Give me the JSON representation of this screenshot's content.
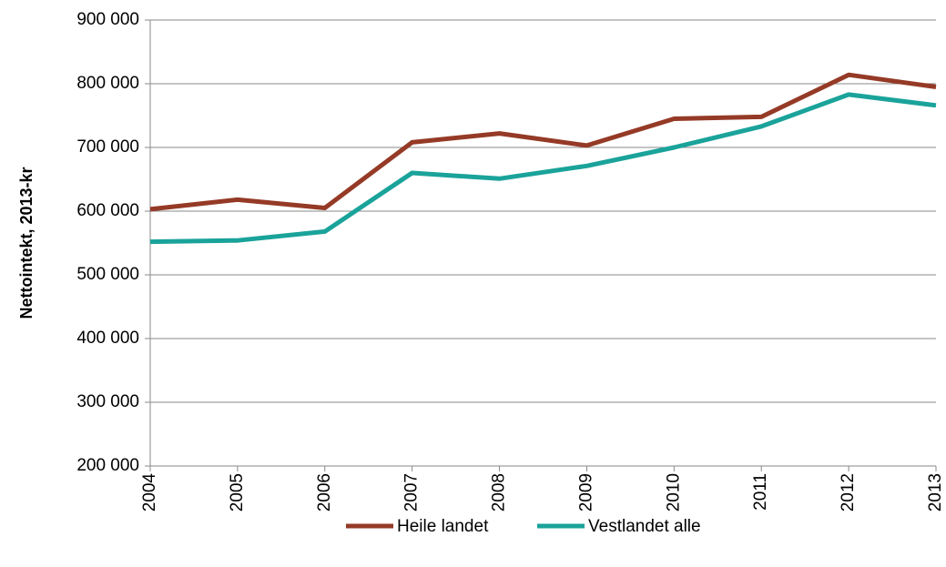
{
  "chart_data": {
    "type": "line",
    "y_label": "Nettointekt, 2013-kr",
    "categories": [
      "2004",
      "2005",
      "2006",
      "2007",
      "2008",
      "2009",
      "2010",
      "2011",
      "2012",
      "2013"
    ],
    "series": [
      {
        "name": "Heile landet",
        "color": "#953a26",
        "values": [
          603000,
          618000,
          605000,
          708000,
          722000,
          703000,
          745000,
          748000,
          814000,
          795000
        ]
      },
      {
        "name": "Vestlandet alle",
        "color": "#1aa39a",
        "values": [
          552000,
          554000,
          568000,
          660000,
          651000,
          671000,
          700000,
          733000,
          783000,
          766000
        ]
      }
    ],
    "ylim": [
      200000,
      900000
    ],
    "yticks": [
      {
        "value": 200000,
        "label": "200 000"
      },
      {
        "value": 300000,
        "label": "300 000"
      },
      {
        "value": 400000,
        "label": "400 000"
      },
      {
        "value": 500000,
        "label": "500 000"
      },
      {
        "value": 600000,
        "label": "600 000"
      },
      {
        "value": 700000,
        "label": "700 000"
      },
      {
        "value": 800000,
        "label": "800 000"
      },
      {
        "value": 900000,
        "label": "900 000"
      }
    ],
    "grid": true,
    "legend": "bottom"
  }
}
